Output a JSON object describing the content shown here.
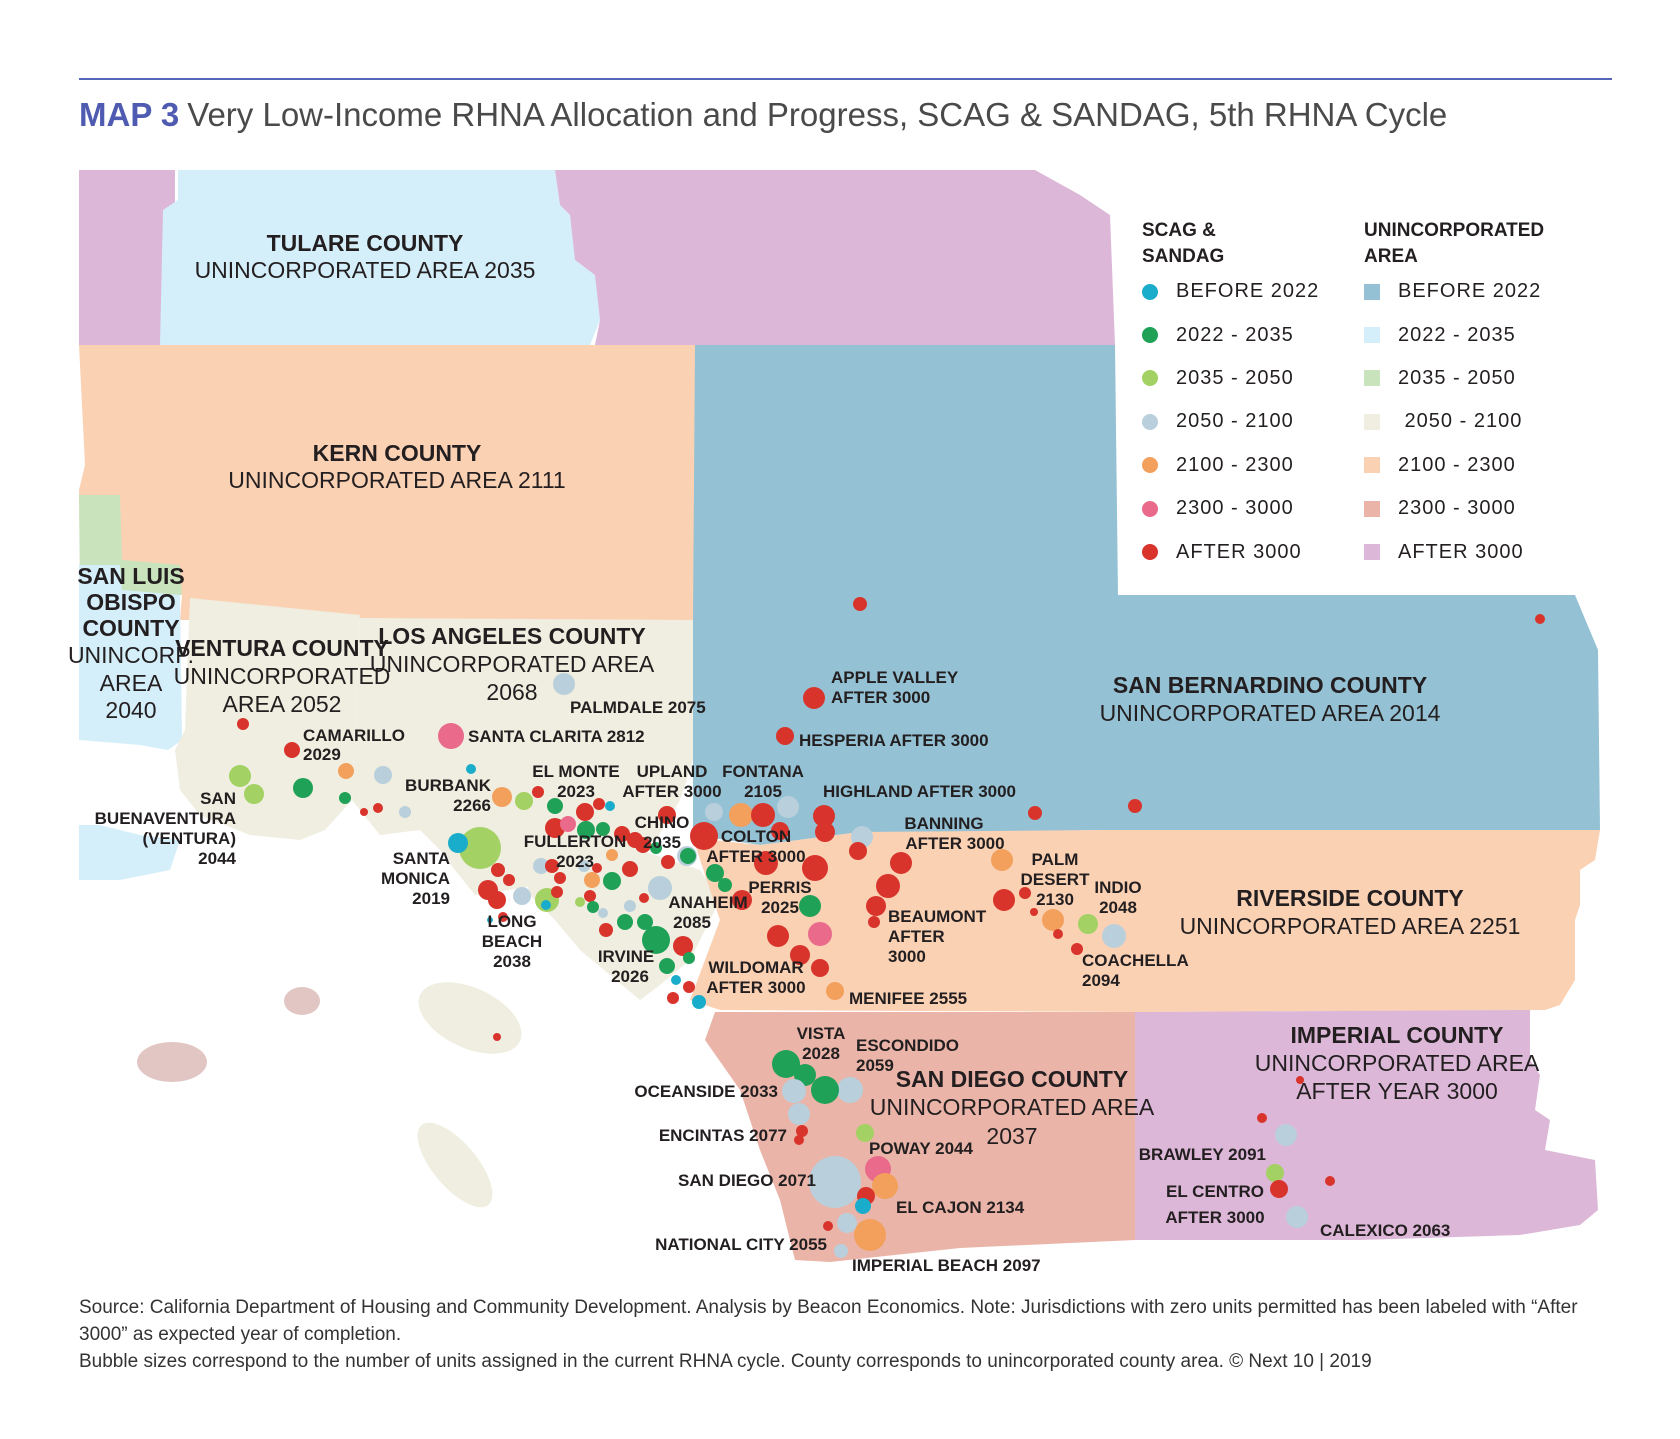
{
  "header": {
    "map_number": "MAP 3",
    "title": "Very Low-Income RHNA Allocation and Progress, SCAG & SANDAG, 5th RHNA Cycle"
  },
  "colors": {
    "before_2022": "#1aaccb",
    "r2022_2035": "#20a158",
    "r2035_2050": "#a3d163",
    "r2050_2100": "#b9cfdc",
    "r2100_2300": "#f3a05d",
    "r2300_3000": "#ea6a8c",
    "after_3000": "#d8342c",
    "area_before_2022": "#94c1d4",
    "area_2022_2035": "#d4eefa",
    "area_2035_2050": "#c9e3bd",
    "area_2050_2100": "#efeee0",
    "area_2100_2300": "#fbd1b4",
    "area_2300_3000": "#eab4a8",
    "area_after_3000": "#dcb7d8"
  },
  "counties": {
    "tulare": {
      "name": "TULARE COUNTY",
      "sub": "UNINCORPORATED AREA 2035"
    },
    "kern": {
      "name": "KERN COUNTY",
      "sub": "UNINCORPORATED AREA 2111"
    },
    "slo": {
      "name1": "SAN LUIS",
      "name2": "OBISPO",
      "name3": "COUNTY",
      "sub1": "UNINCORP.",
      "sub2": "AREA",
      "sub3": "2040"
    },
    "ventura": {
      "name": "VENTURA COUNTY",
      "sub1": "UNINCORPORATED",
      "sub2": "AREA 2052"
    },
    "la": {
      "name": "LOS ANGELES COUNTY",
      "sub1": "UNINCORPORATED AREA",
      "sub2": "2068"
    },
    "sanbern": {
      "name": "SAN BERNARDINO COUNTY",
      "sub": "UNINCORPORATED AREA 2014"
    },
    "riverside": {
      "name": "RIVERSIDE COUNTY",
      "sub": "UNINCORPORATED AREA 2251"
    },
    "sandiego": {
      "name": "SAN DIEGO COUNTY",
      "sub1": "UNINCORPORATED AREA",
      "sub2": "2037"
    },
    "imperial": {
      "name": "IMPERIAL COUNTY",
      "sub1": "UNINCORPORATED AREA",
      "sub2": "AFTER YEAR 3000"
    }
  },
  "cities": {
    "camarillo": [
      "CAMARILLO",
      "2029"
    ],
    "san_buenaventura": [
      "SAN",
      "BUENAVENTURA",
      "(VENTURA)",
      "2044"
    ],
    "santa_clarita": "SANTA CLARITA 2812",
    "palmdale": "PALMDALE 2075",
    "burbank": [
      "BURBANK",
      "2266"
    ],
    "santa_monica": [
      "SANTA",
      "MONICA",
      "2019"
    ],
    "long_beach": [
      "LONG",
      "BEACH",
      "2038"
    ],
    "el_monte": [
      "EL MONTE",
      "2023"
    ],
    "upland": [
      "UPLAND",
      "AFTER 3000"
    ],
    "fontana": [
      "FONTANA",
      "2105"
    ],
    "fullerton": [
      "FULLERTON",
      "2023"
    ],
    "chino": [
      "CHINO",
      "2035"
    ],
    "colton": [
      "COLTON",
      "AFTER 3000"
    ],
    "anaheim": [
      "ANAHEIM",
      "2085"
    ],
    "perris": [
      "PERRIS",
      "2025"
    ],
    "irvine": [
      "IRVINE",
      "2026"
    ],
    "wildomar": [
      "WILDOMAR",
      "AFTER 3000"
    ],
    "menifee": "MENIFEE 2555",
    "apple_valley": [
      "APPLE VALLEY",
      "AFTER 3000"
    ],
    "hesperia": "HESPERIA AFTER 3000",
    "highland": "HIGHLAND AFTER 3000",
    "banning": [
      "BANNING",
      "AFTER 3000"
    ],
    "beaumont": [
      "BEAUMONT",
      "AFTER",
      "3000"
    ],
    "palm_desert": [
      "PALM",
      "DESERT",
      "2130"
    ],
    "indio": [
      "INDIO",
      "2048"
    ],
    "coachella": [
      "COACHELLA",
      "2094"
    ],
    "vista": [
      "VISTA",
      "2028"
    ],
    "escondido": [
      "ESCONDIDO",
      "2059"
    ],
    "oceanside": "OCEANSIDE 2033",
    "encinitas": "ENCINTAS 2077",
    "poway": "POWAY 2044",
    "san_diego": "SAN DIEGO 2071",
    "el_cajon": "EL CAJON 2134",
    "national_city": "NATIONAL CITY 2055",
    "imperial_beach": "IMPERIAL BEACH 2097",
    "brawley": "BRAWLEY 2091",
    "el_centro": [
      "EL CENTRO",
      "AFTER 3000"
    ],
    "calexico": "CALEXICO 2063"
  },
  "legend": {
    "col1_heading_1": "SCAG &",
    "col1_heading_2": "SANDAG",
    "col2_heading_1": "UNINCORPORATED",
    "col2_heading_2": "AREA",
    "items": [
      "BEFORE 2022",
      "2022 - 2035",
      "2035 - 2050",
      "2050 - 2100",
      "2100 - 2300",
      "2300 - 3000",
      "AFTER 3000"
    ],
    "area_items": [
      "BEFORE 2022",
      "2022 - 2035",
      "2035 - 2050",
      " 2050 - 2100",
      "2100 - 2300",
      "2300 - 3000",
      "AFTER 3000"
    ]
  },
  "footer": {
    "line1": "Source: California Department of Housing and Community Development. Analysis by Beacon Economics. Note: Jurisdictions with zero units permitted has been labeled with “After 3000” as expected year of completion.",
    "line2": "Bubble sizes correspond to the number of units assigned in the current RHNA cycle. County corresponds to unincorporated county area. © Next 10 | 2019"
  }
}
